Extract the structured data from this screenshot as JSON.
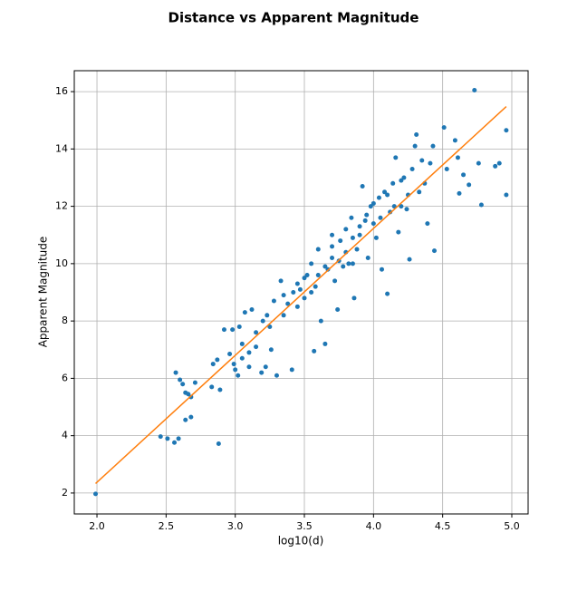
{
  "chart_data": {
    "type": "scatter",
    "title": "Distance vs Apparent Magnitude",
    "xlabel": "log10(d)",
    "ylabel": "Apparent Magnitude",
    "color": "#1f77b4",
    "x": [
      1.99,
      2.46,
      2.51,
      2.56,
      2.59,
      2.88,
      2.57,
      2.6,
      2.62,
      2.64,
      2.66,
      2.68,
      2.64,
      2.68,
      2.71,
      2.83,
      2.84,
      2.87,
      2.89,
      2.92,
      2.96,
      2.98,
      2.99,
      3.0,
      3.02,
      3.03,
      3.05,
      3.07,
      3.1,
      3.12,
      3.15,
      3.19,
      3.22,
      3.2,
      3.23,
      3.26,
      3.28,
      3.3,
      3.33,
      3.35,
      3.38,
      3.41,
      3.42,
      3.45,
      3.47,
      3.5,
      3.52,
      3.55,
      3.57,
      3.58,
      3.6,
      3.62,
      3.65,
      3.67,
      3.7,
      3.72,
      3.74,
      3.76,
      3.78,
      3.8,
      3.82,
      3.84,
      3.86,
      3.88,
      3.9,
      3.92,
      3.94,
      3.96,
      3.98,
      4.0,
      4.02,
      4.04,
      4.06,
      4.08,
      4.1,
      4.12,
      4.14,
      4.16,
      4.18,
      4.2,
      4.22,
      4.24,
      4.26,
      4.28,
      4.3,
      4.31,
      4.33,
      4.35,
      4.37,
      4.39,
      4.41,
      4.43,
      4.44,
      4.51,
      4.53,
      4.59,
      4.61,
      4.62,
      4.65,
      4.69,
      4.73,
      4.76,
      4.78,
      4.88,
      4.91,
      4.96,
      4.96,
      3.25,
      3.35,
      3.45,
      3.55,
      3.6,
      3.65,
      3.7,
      3.75,
      3.8,
      3.85,
      3.9,
      3.95,
      4.0,
      4.05,
      4.1,
      4.15,
      4.2,
      4.25,
      3.15,
      3.05,
      3.1,
      3.5,
      3.7,
      3.85
    ],
    "values": [
      1.97,
      3.97,
      3.9,
      3.76,
      3.9,
      3.72,
      6.2,
      5.95,
      5.8,
      5.5,
      5.45,
      5.35,
      4.55,
      4.65,
      5.85,
      5.7,
      6.5,
      6.65,
      5.6,
      7.7,
      6.85,
      7.7,
      6.5,
      6.3,
      6.1,
      7.8,
      6.7,
      8.3,
      6.4,
      8.4,
      7.1,
      6.2,
      6.4,
      8.0,
      8.2,
      7.0,
      8.7,
      6.1,
      9.4,
      8.2,
      8.6,
      6.3,
      9.0,
      8.5,
      9.1,
      8.8,
      9.6,
      10.0,
      6.95,
      9.2,
      10.5,
      8.0,
      7.2,
      9.8,
      10.2,
      9.4,
      8.4,
      10.8,
      9.9,
      11.2,
      10.0,
      11.6,
      8.8,
      10.5,
      11.0,
      12.7,
      11.5,
      10.2,
      12.0,
      11.4,
      10.9,
      12.3,
      9.8,
      12.5,
      8.95,
      11.8,
      12.8,
      13.7,
      11.1,
      12.0,
      13.0,
      11.9,
      10.15,
      13.3,
      14.1,
      14.5,
      12.5,
      13.6,
      12.8,
      11.4,
      13.5,
      14.1,
      10.45,
      14.75,
      13.3,
      14.3,
      13.7,
      12.45,
      13.1,
      12.75,
      16.05,
      13.5,
      12.05,
      13.4,
      13.5,
      14.65,
      12.4,
      7.8,
      8.9,
      9.3,
      9.0,
      9.6,
      9.9,
      10.6,
      10.1,
      10.4,
      10.9,
      11.3,
      11.7,
      12.1,
      11.6,
      12.4,
      12.0,
      12.9,
      12.4,
      7.6,
      7.2,
      6.9,
      9.5,
      11.0,
      10.0
    ],
    "fit": {
      "type": "line",
      "color": "#ff7f0e",
      "x": [
        1.99,
        4.96
      ],
      "values": [
        2.33,
        15.48
      ]
    },
    "xlim": [
      1.836,
      5.118
    ],
    "ylim": [
      1.27,
      16.73
    ],
    "xticks": [
      {
        "value": 2.0,
        "label": "2.0"
      },
      {
        "value": 2.5,
        "label": "2.5"
      },
      {
        "value": 3.0,
        "label": "3.0"
      },
      {
        "value": 3.5,
        "label": "3.5"
      },
      {
        "value": 4.0,
        "label": "4.0"
      },
      {
        "value": 4.5,
        "label": "4.5"
      },
      {
        "value": 5.0,
        "label": "5.0"
      }
    ],
    "yticks": [
      2,
      4,
      6,
      8,
      10,
      12,
      14,
      16
    ],
    "grid": true
  }
}
